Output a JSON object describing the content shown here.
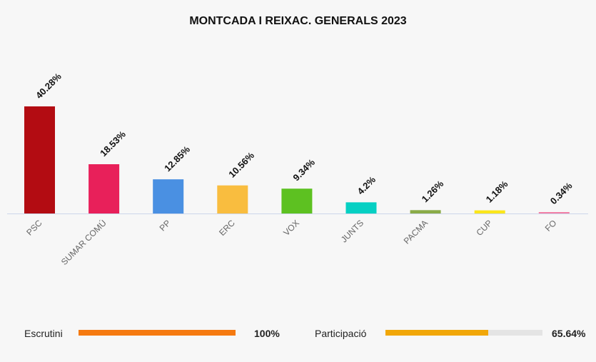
{
  "chart_data": {
    "type": "bar",
    "title": "MONTCADA I REIXAC. GENERALS 2023",
    "categories": [
      "PSC",
      "SUMAR COMÚ",
      "PP",
      "ERC",
      "VOX",
      "JUNTS",
      "PACMA",
      "CUP",
      "FO"
    ],
    "values": [
      40.28,
      18.53,
      12.85,
      10.56,
      9.34,
      4.2,
      1.26,
      1.18,
      0.34
    ],
    "value_labels": [
      "40.28%",
      "18.53%",
      "12.85%",
      "10.56%",
      "9.34%",
      "4.2%",
      "1.26%",
      "1.18%",
      "0.34%"
    ],
    "colors": [
      "#b30c12",
      "#e8205a",
      "#4a90e2",
      "#f9bd3f",
      "#5dc121",
      "#06d0c3",
      "#8aab48",
      "#fbe61b",
      "#f27fa5"
    ],
    "ylim": [
      0,
      40.28
    ],
    "grid": false,
    "legend": "none"
  },
  "footer": {
    "escrutini": {
      "label": "Escrutini",
      "percent": 100,
      "value_text": "100%",
      "color": "#f57a10"
    },
    "participacio": {
      "label": "Participació",
      "percent": 65.64,
      "value_text": "65.64%",
      "color": "#f1a708"
    }
  }
}
